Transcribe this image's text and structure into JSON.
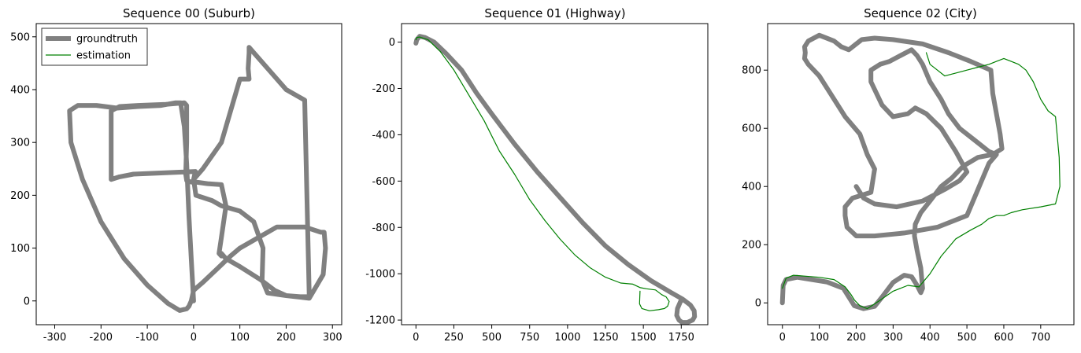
{
  "colors": {
    "groundtruth": "#808080",
    "estimation": "#008000"
  },
  "chart_data": [
    {
      "type": "line",
      "title": "Sequence 00 (Suburb)",
      "xlim": [
        -340,
        320
      ],
      "ylim": [
        -45,
        525
      ],
      "xticks": [
        -300,
        -200,
        -100,
        0,
        100,
        200,
        300
      ],
      "yticks": [
        0,
        100,
        200,
        300,
        400,
        500
      ],
      "legend": {
        "position": "top-left",
        "entries": [
          "groundtruth",
          "estimation"
        ]
      },
      "series": [
        {
          "name": "groundtruth",
          "color": "#808080",
          "x": [
            0,
            -5,
            -10,
            -15,
            -20,
            -28,
            -40,
            -70,
            -120,
            -165,
            -210,
            -250,
            -268,
            -265,
            -240,
            -200,
            -150,
            -100,
            -55,
            -30,
            -15,
            -10,
            -5,
            0,
            20,
            50,
            80,
            100,
            140,
            180,
            240,
            275,
            282,
            285,
            280,
            250,
            200,
            160,
            148,
            150,
            130,
            100,
            60,
            40,
            5,
            0,
            2,
            4,
            -130,
            -160,
            -178,
            -178,
            -178,
            -160,
            -120,
            -60,
            -20,
            -15,
            -15,
            -17,
            -15,
            -5,
            0,
            5,
            30,
            60,
            70,
            60,
            55,
            60,
            60,
            70,
            100,
            145,
            175,
            200,
            230,
            250,
            240,
            200,
            170,
            130,
            120,
            120,
            118,
            120,
            100,
            60,
            20,
            0
          ],
          "y": [
            0,
            80,
            160,
            260,
            330,
            375,
            375,
            370,
            368,
            365,
            370,
            370,
            360,
            300,
            230,
            150,
            80,
            30,
            -5,
            -18,
            -15,
            -10,
            0,
            20,
            35,
            60,
            85,
            100,
            120,
            140,
            140,
            130,
            130,
            100,
            50,
            5,
            10,
            15,
            40,
            100,
            150,
            170,
            180,
            190,
            200,
            230,
            238,
            245,
            240,
            235,
            230,
            300,
            360,
            368,
            370,
            372,
            375,
            370,
            300,
            240,
            228,
            225,
            225,
            225,
            222,
            220,
            180,
            120,
            90,
            85,
            90,
            80,
            65,
            40,
            20,
            10,
            8,
            8,
            380,
            400,
            430,
            470,
            480,
            470,
            440,
            420,
            420,
            300,
            250,
            230
          ]
        }
      ]
    },
    {
      "type": "line",
      "title": "Sequence 01 (Highway)",
      "xlim": [
        -95,
        1925
      ],
      "ylim": [
        -1220,
        80
      ],
      "xticks": [
        0,
        250,
        500,
        750,
        1000,
        1250,
        1500,
        1750
      ],
      "yticks": [
        0,
        -200,
        -400,
        -600,
        -800,
        -1000,
        -1200
      ],
      "series": [
        {
          "name": "groundtruth",
          "color": "#808080",
          "x": [
            0,
            5,
            25,
            60,
            120,
            200,
            300,
            400,
            500,
            650,
            800,
            950,
            1100,
            1250,
            1400,
            1550,
            1680,
            1760,
            1810,
            1835,
            1838,
            1825,
            1790,
            1755,
            1735,
            1720,
            1725,
            1745,
            1760
          ],
          "y": [
            -5,
            10,
            25,
            20,
            0,
            -50,
            -120,
            -220,
            -310,
            -440,
            -560,
            -670,
            -780,
            -880,
            -960,
            -1030,
            -1080,
            -1110,
            -1135,
            -1160,
            -1185,
            -1200,
            -1210,
            -1210,
            -1200,
            -1180,
            -1150,
            -1120,
            -1110
          ]
        },
        {
          "name": "estimation",
          "color": "#008000",
          "x": [
            0,
            5,
            25,
            80,
            160,
            250,
            350,
            450,
            550,
            650,
            750,
            850,
            950,
            1050,
            1150,
            1250,
            1350,
            1430,
            1480,
            1520,
            1580,
            1620,
            1650,
            1670,
            1660,
            1640,
            1600,
            1540,
            1490,
            1475,
            1478
          ],
          "y": [
            10,
            20,
            22,
            10,
            -40,
            -120,
            -230,
            -340,
            -470,
            -570,
            -680,
            -770,
            -850,
            -920,
            -975,
            -1015,
            -1040,
            -1045,
            -1060,
            -1065,
            -1070,
            -1090,
            -1100,
            -1120,
            -1140,
            -1150,
            -1155,
            -1160,
            -1150,
            -1130,
            -1075
          ]
        }
      ]
    },
    {
      "type": "line",
      "title": "Sequence 02 (City)",
      "xlim": [
        -40,
        790
      ],
      "ylim": [
        -75,
        960
      ],
      "xticks": [
        0,
        100,
        200,
        300,
        400,
        500,
        600,
        700
      ],
      "yticks": [
        0,
        200,
        400,
        600,
        800
      ],
      "series": [
        {
          "name": "groundtruth",
          "color": "#808080",
          "x": [
            0,
            2,
            10,
            40,
            80,
            120,
            165,
            180,
            195,
            220,
            250,
            270,
            300,
            330,
            350,
            365,
            375,
            380,
            375,
            365,
            358,
            360,
            375,
            400,
            430,
            460,
            490,
            530,
            570,
            595,
            590,
            580,
            570,
            565,
            510,
            450,
            380,
            300,
            250,
            215,
            200,
            180,
            160,
            140,
            100,
            70,
            60,
            62,
            60,
            70,
            100,
            130,
            170,
            210,
            230,
            250,
            240,
            190,
            170,
            170,
            175,
            200,
            250,
            330,
            420,
            500,
            560,
            580,
            560,
            520,
            480,
            450,
            430,
            400,
            380,
            365,
            350,
            320,
            290,
            265,
            240,
            240,
            270,
            300,
            340,
            360,
            390,
            430,
            470,
            500,
            480,
            440,
            380,
            310,
            250,
            220,
            205,
            200
          ],
          "y": [
            0,
            60,
            80,
            88,
            80,
            72,
            50,
            20,
            -10,
            -20,
            -12,
            20,
            70,
            95,
            90,
            60,
            35,
            50,
            120,
            180,
            230,
            270,
            310,
            350,
            400,
            430,
            470,
            500,
            510,
            530,
            580,
            650,
            720,
            800,
            830,
            860,
            890,
            905,
            910,
            905,
            890,
            870,
            880,
            900,
            920,
            900,
            880,
            860,
            840,
            820,
            780,
            720,
            640,
            580,
            510,
            460,
            380,
            360,
            330,
            300,
            260,
            230,
            230,
            240,
            260,
            300,
            480,
            510,
            520,
            560,
            600,
            650,
            700,
            760,
            820,
            850,
            870,
            850,
            830,
            820,
            800,
            760,
            680,
            640,
            650,
            670,
            650,
            600,
            520,
            450,
            420,
            390,
            350,
            330,
            340,
            360,
            390,
            400
          ]
        },
        {
          "name": "estimation",
          "color": "#008000",
          "x": [
            0,
            10,
            30,
            60,
            100,
            140,
            170,
            185,
            195,
            210,
            230,
            260,
            300,
            340,
            370,
            400,
            430,
            470,
            510,
            540,
            560,
            580,
            600,
            620,
            650,
            700,
            740,
            752,
            750,
            740,
            720,
            700,
            680,
            660,
            640,
            620,
            600,
            580,
            560,
            530,
            500,
            470,
            440,
            420,
            400,
            390
          ],
          "y": [
            50,
            85,
            95,
            92,
            88,
            80,
            55,
            30,
            10,
            -10,
            -20,
            5,
            40,
            60,
            55,
            100,
            160,
            220,
            250,
            270,
            290,
            300,
            300,
            310,
            320,
            330,
            340,
            400,
            500,
            640,
            660,
            700,
            760,
            800,
            820,
            830,
            840,
            830,
            820,
            810,
            800,
            790,
            780,
            800,
            820,
            860
          ]
        }
      ]
    }
  ]
}
